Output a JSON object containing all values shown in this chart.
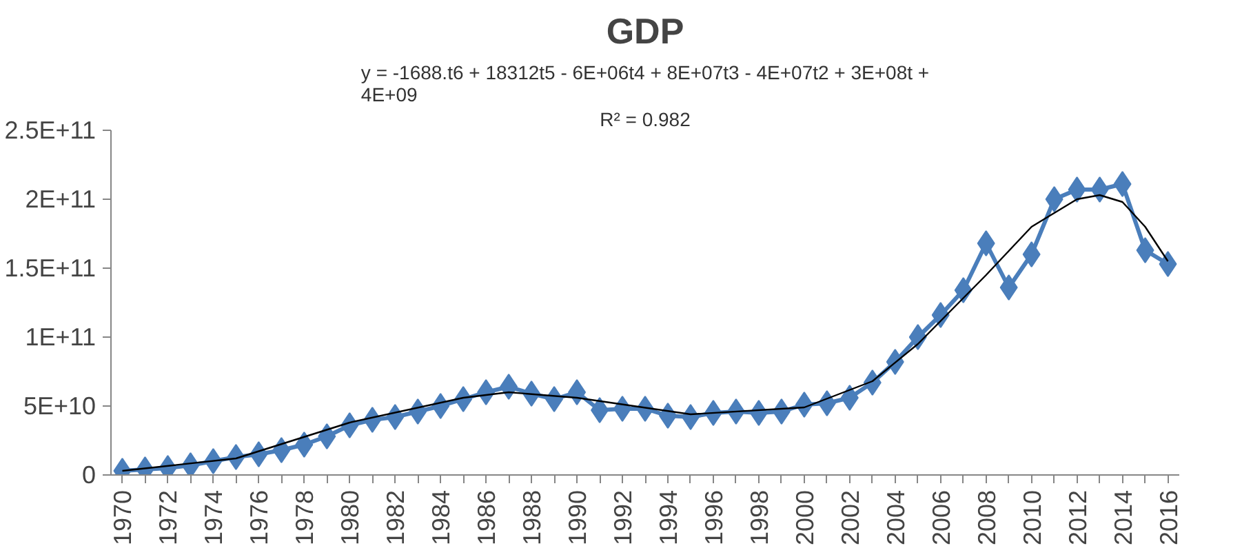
{
  "chart_data": {
    "type": "line",
    "title": "GDP",
    "annotations": [
      "y = -1688.t6 + 18312t5 - 6E+06t4 + 8E+07t3 - 4E+07t2 + 3E+08t + 4E+09",
      "R² = 0.982"
    ],
    "x": [
      1970,
      1971,
      1972,
      1973,
      1974,
      1975,
      1976,
      1977,
      1978,
      1979,
      1980,
      1981,
      1982,
      1983,
      1984,
      1985,
      1986,
      1987,
      1988,
      1989,
      1990,
      1991,
      1992,
      1993,
      1994,
      1995,
      1996,
      1997,
      1998,
      1999,
      2000,
      2001,
      2002,
      2003,
      2004,
      2005,
      2006,
      2007,
      2008,
      2009,
      2010,
      2011,
      2012,
      2013,
      2014,
      2015,
      2016
    ],
    "series": [
      {
        "color": "#4a7ebb",
        "marker": "diamond",
        "values": [
          3000000000.0,
          4000000000.0,
          5000000000.0,
          7000000000.0,
          10000000000.0,
          13000000000.0,
          15000000000.0,
          18000000000.0,
          22000000000.0,
          28000000000.0,
          36000000000.0,
          40000000000.0,
          42000000000.0,
          46000000000.0,
          50000000000.0,
          55000000000.0,
          60000000000.0,
          64000000000.0,
          59000000000.0,
          55000000000.0,
          60000000000.0,
          47000000000.0,
          48000000000.0,
          48000000000.0,
          43000000000.0,
          42000000000.0,
          45000000000.0,
          46000000000.0,
          45000000000.0,
          46000000000.0,
          51000000000.0,
          52000000000.0,
          56000000000.0,
          67000000000.0,
          82000000000.0,
          100000000000.0,
          116000000000.0,
          134000000000.0,
          168000000000.0,
          136000000000.0,
          160000000000.0,
          200000000000.0,
          207000000000.0,
          207000000000.0,
          211000000000.0,
          163000000000.0,
          153000000000.0
        ]
      },
      {
        "type": "line",
        "color": "#000000",
        "marker": "none",
        "x": [
          1970,
          1975,
          1980,
          1985,
          1987,
          1990,
          1995,
          2000,
          2003,
          2005,
          2008,
          2010,
          2012,
          2013,
          2014,
          2015,
          2016
        ],
        "values": [
          3000000000.0,
          12000000000.0,
          38000000000.0,
          56000000000.0,
          60000000000.0,
          56000000000.0,
          44000000000.0,
          49000000000.0,
          68000000000.0,
          95000000000.0,
          145000000000.0,
          180000000000.0,
          200000000000.0,
          203000000000.0,
          198000000000.0,
          180000000000.0,
          155000000000.0
        ]
      }
    ],
    "xlim": [
      1969.5,
      2016.5
    ],
    "xticks": [
      1970,
      {
        "value": 1971,
        "label": null
      },
      1972,
      {
        "value": 1973,
        "label": null
      },
      1974,
      {
        "value": 1975,
        "label": null
      },
      1976,
      {
        "value": 1977,
        "label": null
      },
      1978,
      {
        "value": 1979,
        "label": null
      },
      1980,
      {
        "value": 1981,
        "label": null
      },
      1982,
      {
        "value": 1983,
        "label": null
      },
      1984,
      {
        "value": 1985,
        "label": null
      },
      1986,
      {
        "value": 1987,
        "label": null
      },
      1988,
      {
        "value": 1989,
        "label": null
      },
      1990,
      {
        "value": 1991,
        "label": null
      },
      1992,
      {
        "value": 1993,
        "label": null
      },
      1994,
      {
        "value": 1995,
        "label": null
      },
      1996,
      {
        "value": 1997,
        "label": null
      },
      1998,
      {
        "value": 1999,
        "label": null
      },
      2000,
      {
        "value": 2001,
        "label": null
      },
      2002,
      {
        "value": 2003,
        "label": null
      },
      2004,
      {
        "value": 2005,
        "label": null
      },
      2006,
      {
        "value": 2007,
        "label": null
      },
      2008,
      {
        "value": 2009,
        "label": null
      },
      2010,
      {
        "value": 2011,
        "label": null
      },
      2012,
      {
        "value": 2013,
        "label": null
      },
      2014,
      {
        "value": 2015,
        "label": null
      },
      2016
    ],
    "ylim": [
      0,
      250000000000.0
    ],
    "yticks": [
      {
        "value": 0,
        "label": "0"
      },
      {
        "value": 50000000000.0,
        "label": "5E+10"
      },
      {
        "value": 100000000000.0,
        "label": "1E+11"
      },
      {
        "value": 150000000000.0,
        "label": "1.5E+11"
      },
      {
        "value": 200000000000.0,
        "label": "2E+11"
      },
      {
        "value": 250000000000.0,
        "label": "2.5E+11"
      }
    ],
    "grid": false,
    "line_style": "solid"
  }
}
